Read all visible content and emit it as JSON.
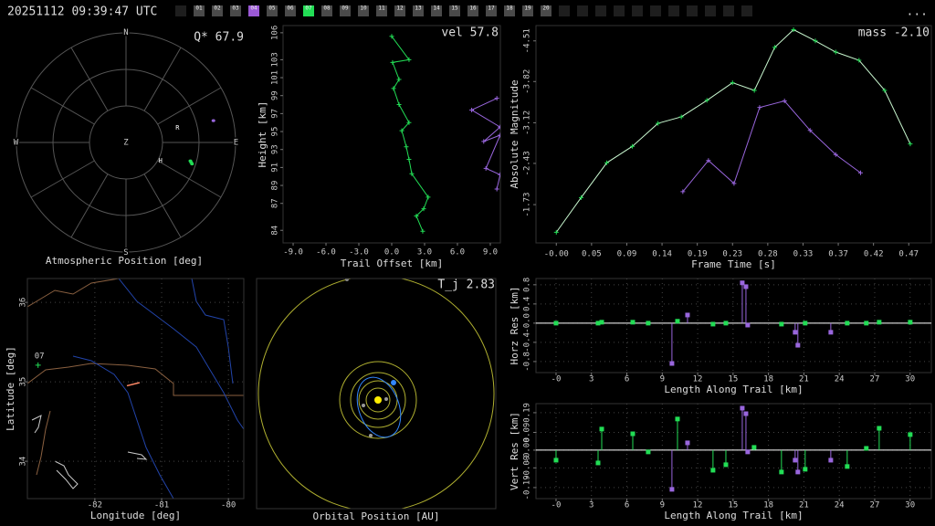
{
  "header": {
    "timestamp": "20251112 09:39:47 UTC",
    "stations": [
      "01",
      "02",
      "03",
      "04",
      "05",
      "06",
      "07",
      "08",
      "09",
      "10",
      "11",
      "12",
      "13",
      "14",
      "15",
      "16",
      "17",
      "18",
      "19",
      "20"
    ],
    "station_colors": [
      "#4a4a4a",
      "#4a4a4a",
      "#4a4a4a",
      "#9b59d6",
      "#4a4a4a",
      "#4a4a4a",
      "#22dd55",
      "#4a4a4a",
      "#4a4a4a",
      "#4a4a4a",
      "#4a4a4a",
      "#4a4a4a",
      "#4a4a4a",
      "#4a4a4a",
      "#4a4a4a",
      "#4a4a4a",
      "#4a4a4a",
      "#4a4a4a",
      "#4a4a4a",
      "#4a4a4a"
    ],
    "menu": "..."
  },
  "chart_data": [
    {
      "type": "polar",
      "title": "Atmospheric Position [deg]",
      "annotation": "Q* 67.9",
      "directions": [
        "N",
        "E",
        "S",
        "W"
      ],
      "center_label": "Z",
      "markers": [
        {
          "label": "R",
          "az": 74,
          "alt": 46
        },
        {
          "label": "H",
          "az": 118,
          "alt": 58
        }
      ],
      "series": [
        {
          "color": "#9966dd",
          "az": [
            76
          ],
          "alt": [
            16
          ]
        },
        {
          "color": "#22dd55",
          "az": [
            106,
            107,
            108
          ],
          "alt": [
            35,
            34,
            33
          ]
        }
      ]
    },
    {
      "type": "line",
      "annotation": "vel 57.8",
      "xlabel": "Trail Offset [km]",
      "ylabel": "Height [km]",
      "xlim": [
        -9.92,
        9.92
      ],
      "ylim": [
        82.6,
        106.8
      ],
      "xticks": [
        {
          "value": -9,
          "label": "-9.0"
        },
        {
          "value": -6,
          "label": "-6.0"
        },
        {
          "value": -3,
          "label": "-3.0"
        },
        {
          "value": 0,
          "label": "0.0"
        },
        {
          "value": 3,
          "label": "3.0"
        },
        {
          "value": 6,
          "label": "6.0"
        },
        {
          "value": 9,
          "label": "9.0"
        }
      ],
      "yticks": [
        84,
        87,
        89,
        91,
        93,
        95,
        97,
        99,
        101,
        103,
        106
      ],
      "series": [
        {
          "color": "#22dd55",
          "x": [
            0.0,
            1.58,
            0.08,
            0.67,
            0.17,
            0.67,
            1.58,
            0.92,
            1.33,
            1.58,
            1.83,
            3.33,
            2.92,
            2.25,
            2.83
          ],
          "values": [
            105.6,
            103.0,
            102.7,
            100.8,
            99.8,
            98.0,
            96.0,
            95.1,
            93.3,
            91.9,
            90.3,
            87.7,
            86.4,
            85.6,
            83.9
          ]
        },
        {
          "color": "#9966dd",
          "x": [
            9.6,
            7.3,
            9.9,
            8.4,
            9.9,
            8.6,
            9.9,
            9.6
          ],
          "values": [
            98.7,
            97.4,
            95.5,
            93.9,
            94.6,
            90.9,
            90.2,
            88.6
          ]
        }
      ]
    },
    {
      "type": "line",
      "annotation": "mass -2.10",
      "xlabel": "Frame Time [s]",
      "ylabel": "Absolute Magnitude",
      "xlim": [
        -0.027,
        0.498
      ],
      "ylim": [
        -1.08,
        -4.77
      ],
      "xticks": [
        {
          "value": 0,
          "label": "-0.00"
        },
        {
          "value": 0.0468,
          "label": "0.05"
        },
        {
          "value": 0.0936,
          "label": "0.09"
        },
        {
          "value": 0.1404,
          "label": "0.14"
        },
        {
          "value": 0.1872,
          "label": "0.19"
        },
        {
          "value": 0.234,
          "label": "0.23"
        },
        {
          "value": 0.2808,
          "label": "0.28"
        },
        {
          "value": 0.3276,
          "label": "0.33"
        },
        {
          "value": 0.3744,
          "label": "0.37"
        },
        {
          "value": 0.4212,
          "label": "0.42"
        },
        {
          "value": 0.468,
          "label": "0.47"
        }
      ],
      "yticks": [
        -4.51,
        -3.82,
        -3.12,
        -2.43,
        -1.73
      ],
      "series": [
        {
          "color": "#c8f7cf",
          "x": [
            0,
            0.033,
            0.067,
            0.101,
            0.135,
            0.166,
            0.2,
            0.234,
            0.263,
            0.29,
            0.315,
            0.344,
            0.371,
            0.402,
            0.436,
            0.47
          ],
          "values": [
            -1.26,
            -1.85,
            -2.44,
            -2.72,
            -3.11,
            -3.22,
            -3.5,
            -3.8,
            -3.67,
            -4.4,
            -4.7,
            -4.51,
            -4.32,
            -4.18,
            -3.67,
            -2.76
          ]
        },
        {
          "color": "#9966dd",
          "x": [
            0.168,
            0.202,
            0.236,
            0.27,
            0.303,
            0.337,
            0.371,
            0.404
          ],
          "values": [
            -1.95,
            -2.48,
            -2.09,
            -3.38,
            -3.49,
            -2.99,
            -2.58,
            -2.27
          ]
        }
      ]
    },
    {
      "type": "map",
      "xlabel": "Longitude [deg]",
      "ylabel": "Latitude [deg]",
      "xlim": [
        -83.01,
        -79.77
      ],
      "ylim": [
        33.53,
        36.3
      ],
      "xticks": [
        -82,
        -81,
        -80
      ],
      "yticks": [
        34,
        35,
        36
      ],
      "grid": true,
      "stations": [
        {
          "label": "07",
          "lon": -82.85,
          "lat": 35.21,
          "color": "#22dd55"
        }
      ],
      "trail": {
        "color": "#ff8866",
        "lon": [
          -81.52,
          -81.33
        ],
        "lat": [
          34.95,
          34.99
        ]
      }
    },
    {
      "type": "orbit",
      "title": "Orbital Position [AU]",
      "annotation": "T_j 2.83"
    },
    {
      "type": "stem",
      "xlabel": "Length Along Trail [km]",
      "ylabel": "Horz Res [km]",
      "xlim": [
        -1.7,
        31.8
      ],
      "ylim": [
        -1.03,
        0.93
      ],
      "grid": true,
      "xticks": [
        {
          "value": 0,
          "label": "-0"
        },
        3,
        6,
        9,
        12,
        15,
        18,
        21,
        24,
        27,
        30
      ],
      "yticks": [
        0.8,
        0.4,
        {
          "value": 0,
          "label": "-0.0"
        },
        -0.4,
        -0.8
      ],
      "series": [
        {
          "color": "#22dd55",
          "x": [
            0,
            3.56,
            3.87,
            6.5,
            7.81,
            10.29,
            13.3,
            14.39,
            19.1,
            21.11,
            24.67,
            26.29,
            27.38,
            30.01
          ],
          "values": [
            0.0,
            0.0,
            0.02,
            0.02,
            0.0,
            0.04,
            -0.02,
            0.0,
            -0.02,
            0.0,
            0.0,
            0.0,
            0.02,
            0.02
          ]
        },
        {
          "color": "#9966dd",
          "x": [
            9.82,
            11.14,
            15.78,
            16.09,
            16.24,
            20.26,
            20.49,
            23.28
          ],
          "values": [
            -0.84,
            0.17,
            0.84,
            0.76,
            -0.04,
            -0.19,
            -0.46,
            -0.19
          ]
        }
      ]
    },
    {
      "type": "stem",
      "xlabel": "Length Along Trail [km]",
      "ylabel": "Vert Res [km]",
      "xlim": [
        -1.7,
        31.8
      ],
      "ylim": [
        -0.246,
        0.236
      ],
      "grid": true,
      "xticks": [
        {
          "value": 0,
          "label": "-0"
        },
        3,
        6,
        9,
        12,
        15,
        18,
        21,
        24,
        27,
        30
      ],
      "yticks": [
        0.19,
        0.09,
        {
          "value": 0,
          "label": "-0.00"
        },
        -0.09,
        -0.19
      ],
      "series": [
        {
          "color": "#22dd55",
          "x": [
            0,
            3.56,
            3.87,
            6.5,
            7.81,
            10.29,
            13.3,
            14.39,
            16.78,
            19.1,
            21.11,
            24.67,
            26.29,
            27.38,
            30.01
          ],
          "values": [
            -0.051,
            -0.065,
            0.107,
            0.083,
            -0.009,
            0.158,
            -0.102,
            -0.074,
            0.014,
            -0.111,
            -0.097,
            -0.083,
            0.009,
            0.111,
            0.079
          ]
        },
        {
          "color": "#9966dd",
          "x": [
            9.82,
            11.14,
            15.78,
            16.09,
            16.24,
            20.26,
            20.49,
            23.28
          ],
          "values": [
            -0.199,
            0.037,
            0.213,
            0.185,
            -0.009,
            -0.051,
            -0.111,
            -0.051
          ]
        }
      ]
    }
  ]
}
